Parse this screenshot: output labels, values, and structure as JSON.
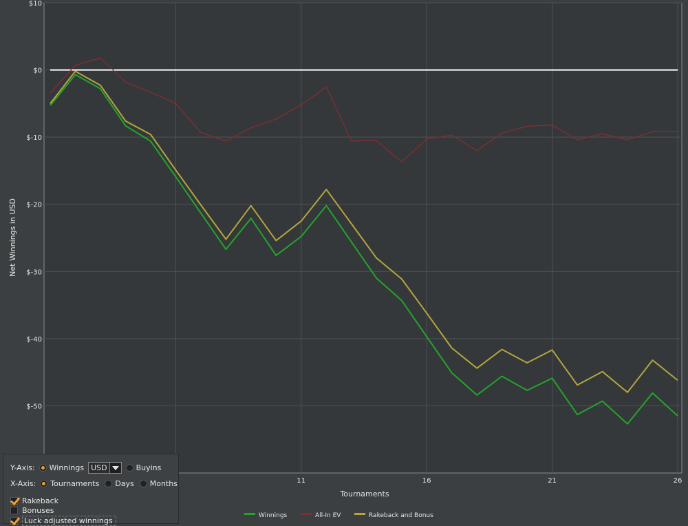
{
  "chart_data": {
    "type": "line",
    "title": "",
    "xlabel": "Tournaments",
    "ylabel": "Net Winnings in USD",
    "xlim": [
      1,
      26
    ],
    "ylim": [
      -60,
      10
    ],
    "x_ticks": [
      11,
      16,
      21,
      26
    ],
    "y_ticks": [
      {
        "value": 10,
        "label": "$10"
      },
      {
        "value": 0,
        "label": "$0"
      },
      {
        "value": -10,
        "label": "$-10"
      },
      {
        "value": -20,
        "label": "$-20"
      },
      {
        "value": -30,
        "label": "$-30"
      },
      {
        "value": -40,
        "label": "$-40"
      },
      {
        "value": -50,
        "label": "$-50"
      }
    ],
    "grid": true,
    "legend_position": "bottom",
    "x": [
      1,
      2,
      3,
      4,
      5,
      6,
      7,
      8,
      9,
      10,
      11,
      12,
      13,
      14,
      15,
      16,
      17,
      18,
      19,
      20,
      21,
      22,
      23,
      24,
      25,
      26
    ],
    "series": [
      {
        "name": "Winnings",
        "color": "#22a52a",
        "width": 2,
        "values": [
          -5.3,
          -0.7,
          -2.8,
          -8.3,
          -10.6,
          -15.9,
          -21.3,
          -26.7,
          -22.1,
          -27.6,
          -24.8,
          -20.2,
          -25.6,
          -31.0,
          -34.3,
          -39.7,
          -45.1,
          -48.4,
          -45.6,
          -47.7,
          -45.9,
          -51.3,
          -49.3,
          -52.7,
          -48.1,
          -51.5
        ]
      },
      {
        "name": "All-In EV",
        "color": "#8b2c2c",
        "width": 1.2,
        "values": [
          -3.5,
          0.7,
          1.8,
          -1.8,
          -3.3,
          -5.0,
          -9.3,
          -10.6,
          -8.6,
          -7.3,
          -5.2,
          -2.5,
          -10.6,
          -10.5,
          -13.7,
          -10.3,
          -9.7,
          -12.0,
          -9.4,
          -8.4,
          -8.2,
          -10.4,
          -9.5,
          -10.4,
          -9.2,
          -9.2
        ]
      },
      {
        "name": "Rakeback and Bonus",
        "color": "#b5a63a",
        "width": 2,
        "values": [
          -5.0,
          -0.2,
          -2.3,
          -7.6,
          -9.6,
          -14.9,
          -20.1,
          -25.2,
          -20.2,
          -25.4,
          -22.5,
          -17.8,
          -22.9,
          -28.0,
          -31.1,
          -36.2,
          -41.4,
          -44.4,
          -41.6,
          -43.6,
          -41.7,
          -46.9,
          -44.9,
          -48.0,
          -43.2,
          -46.2
        ]
      }
    ],
    "reference_line": {
      "value": 0,
      "color": "#ffffff"
    }
  },
  "controls": {
    "yaxis_label": "Y-Axis:",
    "yaxis_options": [
      "Winnings",
      "Buyins"
    ],
    "yaxis_selected": "Winnings",
    "currency_value": "USD",
    "xaxis_label": "X-Axis:",
    "xaxis_options": [
      "Tournaments",
      "Days",
      "Months"
    ],
    "xaxis_selected": "Tournaments",
    "checkboxes": [
      {
        "label": "Rakeback",
        "checked": true
      },
      {
        "label": "Bonuses",
        "checked": false
      },
      {
        "label": "Luck adjusted winnings",
        "checked": true
      }
    ],
    "accent_color": "#f0a030"
  }
}
